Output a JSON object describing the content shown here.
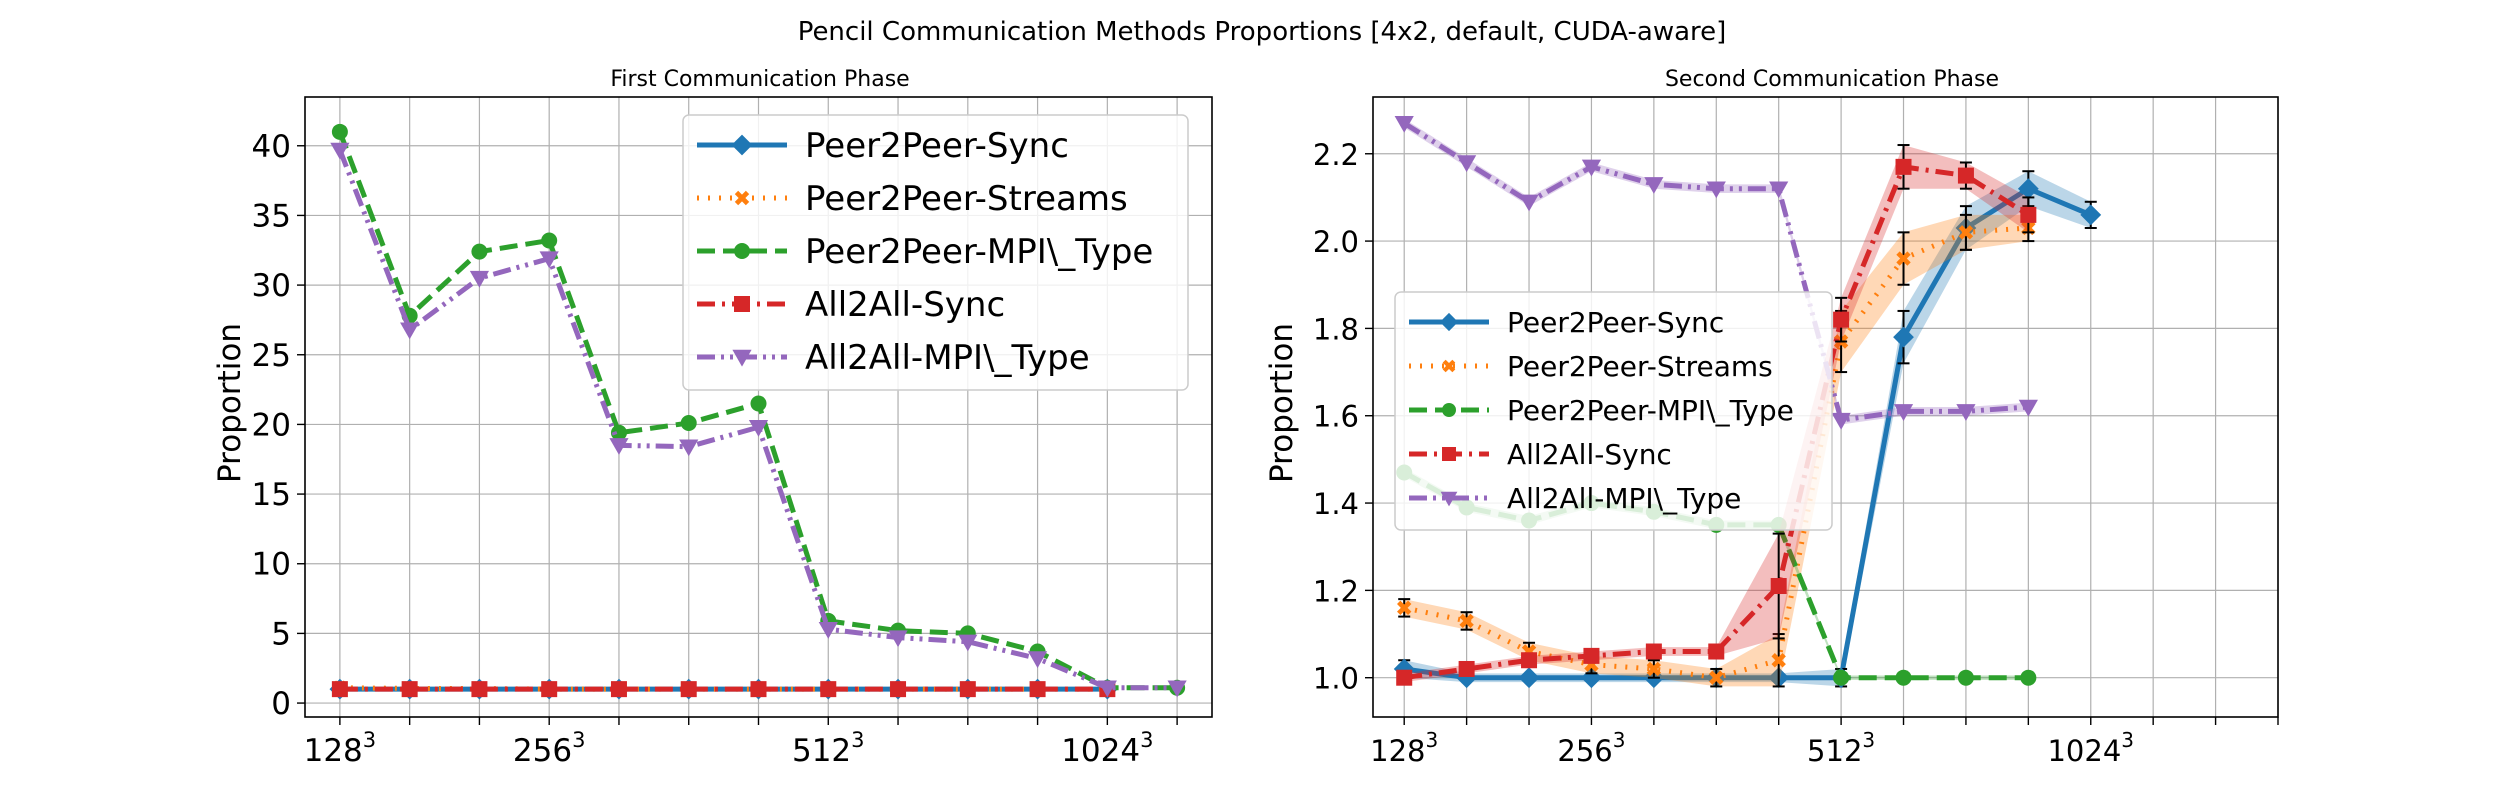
{
  "figure": {
    "title": "Pencil Communication Methods Proportions [4x2, default, CUDA-aware]"
  },
  "colors": {
    "Peer2Peer-Sync": "#1f77b4",
    "Peer2Peer-Streams": "#ff7f0e",
    "Peer2Peer-MPI\\_Type": "#2ca02c",
    "All2All-Sync": "#d62728",
    "All2All-MPI\\_Type": "#9467bd"
  },
  "chart_data": [
    {
      "type": "line",
      "title": "First Communication Phase",
      "xlabel": "",
      "ylabel": "Proportion",
      "xticks": [
        {
          "label": "128",
          "sup": "3",
          "x": 0
        },
        {
          "label": "256",
          "sup": "3",
          "x": 3
        },
        {
          "label": "512",
          "sup": "3",
          "x": 7
        },
        {
          "label": "1024",
          "sup": "3",
          "x": 11
        }
      ],
      "yticks": [
        "0",
        "5",
        "10",
        "15",
        "20",
        "25",
        "30",
        "35",
        "40"
      ],
      "xlim": [
        -0.5,
        12.5
      ],
      "ylim": [
        -1,
        43.5
      ],
      "grid": true,
      "legend_position": "top-right",
      "series": [
        {
          "name": "Peer2Peer-Sync",
          "marker": "diamond",
          "dash": "solid",
          "x": [
            0,
            1,
            2,
            3,
            4,
            5,
            6,
            7,
            8,
            9,
            10,
            11
          ],
          "y": [
            1,
            1,
            1,
            1,
            1,
            1,
            1,
            1,
            1,
            1,
            1,
            1
          ]
        },
        {
          "name": "Peer2Peer-Streams",
          "marker": "x",
          "dash": "dotted",
          "x": [
            0,
            1,
            2,
            3,
            4,
            5,
            6,
            7,
            8,
            9,
            10,
            11
          ],
          "y": [
            1.1,
            1.05,
            1.05,
            1,
            1,
            1,
            1,
            1,
            1,
            1,
            1,
            1
          ]
        },
        {
          "name": "Peer2Peer-MPI\\_Type",
          "marker": "circle",
          "dash": "dashed",
          "x": [
            0,
            1,
            2,
            3,
            4,
            5,
            6,
            7,
            8,
            9,
            10,
            11,
            12
          ],
          "y": [
            41,
            27.8,
            32.4,
            33.2,
            19.4,
            20.1,
            21.5,
            5.9,
            5.2,
            5.0,
            3.7,
            1.1,
            1.1
          ]
        },
        {
          "name": "All2All-Sync",
          "marker": "square",
          "dash": "dashdot",
          "x": [
            0,
            1,
            2,
            3,
            4,
            5,
            6,
            7,
            8,
            9,
            10,
            11
          ],
          "y": [
            1,
            1,
            1,
            1,
            1,
            1,
            1,
            1,
            1,
            1,
            1,
            1
          ]
        },
        {
          "name": "All2All-MPI\\_Type",
          "marker": "triangle-down",
          "dash": "dashdotdot",
          "x": [
            0,
            1,
            2,
            3,
            4,
            5,
            6,
            7,
            8,
            9,
            10,
            11,
            12
          ],
          "y": [
            39.7,
            26.8,
            30.5,
            31.9,
            18.5,
            18.4,
            19.8,
            5.3,
            4.7,
            4.4,
            3.2,
            1.1,
            1.1
          ]
        }
      ]
    },
    {
      "type": "line",
      "title": "Second Communication Phase",
      "xlabel": "",
      "ylabel": "Proportion",
      "xticks": [
        {
          "label": "128",
          "sup": "3",
          "x": 0
        },
        {
          "label": "256",
          "sup": "3",
          "x": 3
        },
        {
          "label": "512",
          "sup": "3",
          "x": 7
        },
        {
          "label": "1024",
          "sup": "3",
          "x": 11
        }
      ],
      "yticks": [
        "1.0",
        "1.2",
        "1.4",
        "1.6",
        "1.8",
        "2.0",
        "2.2"
      ],
      "xlim": [
        -0.5,
        14
      ],
      "ylim": [
        0.91,
        2.33
      ],
      "grid": true,
      "legend_position": "center-left",
      "series": [
        {
          "name": "Peer2Peer-Sync",
          "marker": "diamond",
          "dash": "solid",
          "x": [
            0,
            1,
            2,
            3,
            4,
            5,
            6,
            7,
            8,
            9,
            10,
            11,
            12
          ],
          "y": [
            1.02,
            1.0,
            1.0,
            1.0,
            1.0,
            1.0,
            1.0,
            1.0,
            1.78,
            2.03,
            2.12,
            2.06,
            null
          ],
          "band": [
            0.02,
            0.01,
            0.01,
            0.01,
            0.01,
            0.01,
            0.01,
            0.02,
            0.06,
            0.05,
            0.04,
            0.03,
            null
          ]
        },
        {
          "name": "Peer2Peer-Streams",
          "marker": "x",
          "dash": "dotted",
          "x": [
            0,
            1,
            2,
            3,
            4,
            5,
            6,
            7,
            8,
            9,
            10,
            11,
            12
          ],
          "y": [
            1.16,
            1.13,
            1.06,
            1.03,
            1.02,
            1.0,
            1.04,
            1.77,
            1.96,
            2.02,
            2.03,
            null,
            null
          ],
          "band": [
            0.02,
            0.02,
            0.02,
            0.02,
            0.02,
            0.02,
            0.06,
            0.07,
            0.06,
            0.04,
            0.03,
            null,
            null
          ]
        },
        {
          "name": "Peer2Peer-MPI\\_Type",
          "marker": "circle",
          "dash": "dashed",
          "x": [
            0,
            1,
            2,
            3,
            4,
            5,
            6,
            7,
            8,
            9,
            10,
            11,
            12
          ],
          "y": [
            1.47,
            1.39,
            1.36,
            1.4,
            1.38,
            1.35,
            1.35,
            1.0,
            1.0,
            1.0,
            1.0,
            null,
            null
          ],
          "band": [
            0.01,
            0.01,
            0.01,
            0.01,
            0.01,
            0.01,
            0.01,
            0.005,
            0.005,
            0.005,
            0.005,
            null,
            null
          ]
        },
        {
          "name": "All2All-Sync",
          "marker": "square",
          "dash": "dashdot",
          "x": [
            0,
            1,
            2,
            3,
            4,
            5,
            6,
            7,
            8,
            9,
            10,
            11,
            12
          ],
          "y": [
            1.0,
            1.02,
            1.04,
            1.05,
            1.06,
            1.06,
            1.21,
            1.82,
            2.17,
            2.15,
            2.06,
            null,
            null
          ],
          "band": [
            0.01,
            0.01,
            0.01,
            0.01,
            0.01,
            0.01,
            0.12,
            0.05,
            0.05,
            0.03,
            0.04,
            null,
            null
          ]
        },
        {
          "name": "All2All-MPI\\_Type",
          "marker": "triangle-down",
          "dash": "dashdotdot",
          "x": [
            0,
            1,
            2,
            3,
            4,
            5,
            6,
            7,
            8,
            9,
            10,
            11,
            12
          ],
          "y": [
            2.27,
            2.18,
            2.09,
            2.17,
            2.13,
            2.12,
            2.12,
            1.59,
            1.61,
            1.61,
            1.62,
            null,
            null
          ],
          "band": [
            0.01,
            0.01,
            0.01,
            0.01,
            0.01,
            0.01,
            0.01,
            0.01,
            0.01,
            0.01,
            0.01,
            null,
            null
          ]
        }
      ]
    }
  ]
}
